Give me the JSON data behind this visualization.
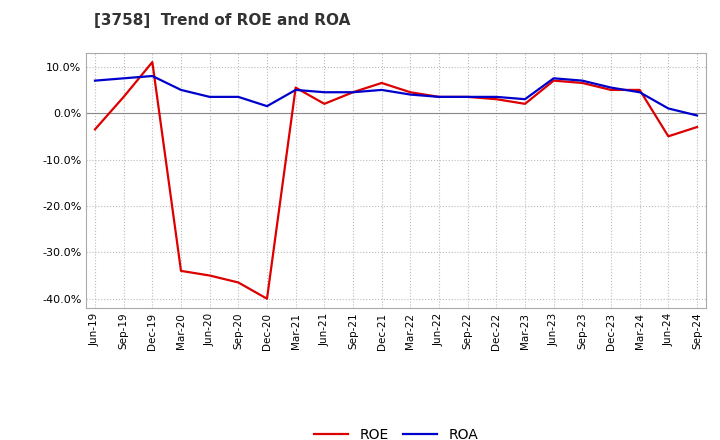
{
  "title": "[3758]  Trend of ROE and ROA",
  "labels": [
    "Jun-19",
    "Sep-19",
    "Dec-19",
    "Mar-20",
    "Jun-20",
    "Sep-20",
    "Dec-20",
    "Mar-21",
    "Jun-21",
    "Sep-21",
    "Dec-21",
    "Mar-22",
    "Jun-22",
    "Sep-22",
    "Dec-22",
    "Mar-23",
    "Jun-23",
    "Sep-23",
    "Dec-23",
    "Mar-24",
    "Jun-24",
    "Sep-24"
  ],
  "ROE": [
    -3.5,
    3.5,
    11.0,
    -34.0,
    -35.0,
    -36.5,
    -40.0,
    5.5,
    2.0,
    4.5,
    6.5,
    4.5,
    3.5,
    3.5,
    3.0,
    2.0,
    7.0,
    6.5,
    5.0,
    5.0,
    -5.0,
    -3.0
  ],
  "ROA": [
    7.0,
    7.5,
    8.0,
    5.0,
    3.5,
    3.5,
    1.5,
    5.0,
    4.5,
    4.5,
    5.0,
    4.0,
    3.5,
    3.5,
    3.5,
    3.0,
    7.5,
    7.0,
    5.5,
    4.5,
    1.0,
    -0.5
  ],
  "roe_color": "#dd0000",
  "roa_color": "#0000cc",
  "bg_color": "#ffffff",
  "plot_bg_color": "#ffffff",
  "grid_color": "#bbbbbb",
  "ylim": [
    -42,
    13
  ],
  "yticks": [
    -40,
    -30,
    -20,
    -10,
    0,
    10
  ],
  "line_width": 1.6
}
